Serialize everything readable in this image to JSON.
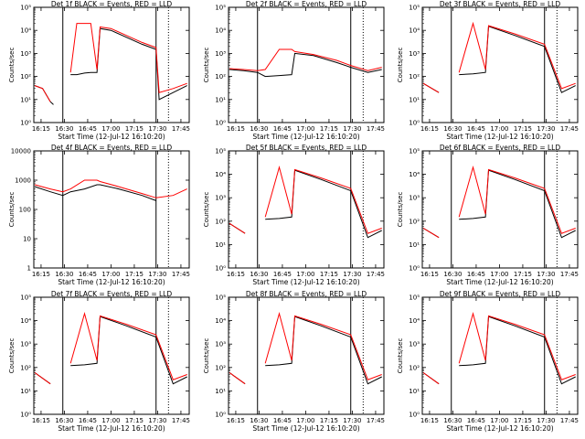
{
  "figure": {
    "layout": "3x3 grid",
    "colors": {
      "events": "#000000",
      "lld": "#ff0000",
      "axes": "#000000",
      "background": "#ffffff"
    },
    "shared_axes": {
      "x_scale": "time",
      "y_scale": "log",
      "x_ticks": [
        "16:15",
        "16:30",
        "16:45",
        "17:00",
        "17:15",
        "17:30",
        "17:45"
      ],
      "x_range": [
        "16:10:20",
        "17:50:20"
      ],
      "ylabel": "Counts/sec",
      "xlabel": "Start Time (12-Jul-12 16:10:20)"
    }
  },
  "chart_data": [
    {
      "type": "line",
      "title": "Det 1f BLACK = Events, RED = LLD",
      "ylabel": "Counts/sec",
      "xlabel": "Start Time (12-Jul-12 16:10:20)",
      "y_scale": "log",
      "ylim": [
        1,
        100000
      ],
      "y_tick_labels": [
        "10⁰",
        "10¹",
        "10²",
        "10³",
        "10⁴",
        "10⁵"
      ],
      "x_ticks": [
        "16:15",
        "16:30",
        "16:45",
        "17:00",
        "17:15",
        "17:30",
        "17:45"
      ],
      "vlines": {
        "solid": [
          "16:29",
          "17:29"
        ],
        "dotted": [
          "17:37"
        ]
      },
      "series": [
        {
          "name": "Events",
          "color": "#000000",
          "x": [
            "16:11",
            "16:16",
            "16:21",
            "16:23",
            "16:29",
            "16:34",
            "16:38",
            "16:43",
            "16:47",
            "16:51",
            "16:53",
            "17:00",
            "17:10",
            "17:20",
            "17:29",
            "17:31",
            "17:40",
            "17:49"
          ],
          "y": [
            40,
            30,
            8,
            6,
            null,
            120,
            120,
            140,
            150,
            150,
            12000,
            10000,
            5000,
            2500,
            1500,
            10,
            20,
            40
          ]
        },
        {
          "name": "LLD",
          "color": "#ff0000",
          "x": [
            "16:11",
            "16:16",
            "16:21",
            "16:23",
            "16:29",
            "16:34",
            "16:38",
            "16:43",
            "16:47",
            "16:51",
            "16:53",
            "17:00",
            "17:10",
            "17:20",
            "17:29",
            "17:31",
            "17:40",
            "17:49"
          ],
          "y": [
            40,
            30,
            8,
            null,
            null,
            150,
            20000,
            20000,
            20000,
            200,
            14000,
            12000,
            6000,
            3000,
            1800,
            20,
            30,
            50
          ]
        }
      ]
    },
    {
      "type": "line",
      "title": "Det 2f BLACK = Events, RED = LLD",
      "ylabel": "Counts/sec",
      "xlabel": "Start Time (12-Jul-12 16:10:20)",
      "y_scale": "log",
      "ylim": [
        1,
        100000
      ],
      "y_tick_labels": [
        "10⁰",
        "10¹",
        "10²",
        "10³",
        "10⁴",
        "10⁵"
      ],
      "x_ticks": [
        "16:15",
        "16:30",
        "16:45",
        "17:00",
        "17:15",
        "17:30",
        "17:45"
      ],
      "vlines": {
        "solid": [
          "16:29",
          "17:29"
        ],
        "dotted": [
          "17:37"
        ]
      },
      "series": [
        {
          "name": "Events",
          "color": "#000000",
          "x": [
            "16:11",
            "16:20",
            "16:29",
            "16:34",
            "16:43",
            "16:51",
            "16:53",
            "17:05",
            "17:20",
            "17:29",
            "17:40",
            "17:49"
          ],
          "y": [
            200,
            180,
            150,
            100,
            110,
            120,
            1000,
            800,
            400,
            250,
            150,
            200
          ]
        },
        {
          "name": "LLD",
          "color": "#ff0000",
          "x": [
            "16:11",
            "16:20",
            "16:29",
            "16:34",
            "16:43",
            "16:51",
            "16:53",
            "17:05",
            "17:20",
            "17:29",
            "17:40",
            "17:49"
          ],
          "y": [
            220,
            200,
            180,
            200,
            1500,
            1500,
            1200,
            900,
            500,
            300,
            180,
            250
          ]
        }
      ]
    },
    {
      "type": "line",
      "title": "Det 3f BLACK = Events, RED = LLD",
      "ylabel": "Counts/sec",
      "xlabel": "Start Time (12-Jul-12 16:10:20)",
      "y_scale": "log",
      "ylim": [
        1,
        100000
      ],
      "y_tick_labels": [
        "10⁰",
        "10¹",
        "10²",
        "10³",
        "10⁴",
        "10⁵"
      ],
      "x_ticks": [
        "16:15",
        "16:30",
        "16:45",
        "17:00",
        "17:15",
        "17:30",
        "17:45"
      ],
      "vlines": {
        "solid": [
          "16:29",
          "17:29"
        ],
        "dotted": [
          "17:37"
        ]
      },
      "series": [
        {
          "name": "Events",
          "color": "#000000",
          "x": [
            "16:11",
            "16:21",
            "16:29",
            "16:34",
            "16:43",
            "16:51",
            "16:53",
            "17:10",
            "17:29",
            "17:40",
            "17:49"
          ],
          "y": [
            50,
            20,
            null,
            120,
            130,
            150,
            15000,
            6000,
            2000,
            20,
            40
          ]
        },
        {
          "name": "LLD",
          "color": "#ff0000",
          "x": [
            "16:11",
            "16:21",
            "16:29",
            "16:34",
            "16:43",
            "16:51",
            "16:53",
            "17:10",
            "17:29",
            "17:40",
            "17:49"
          ],
          "y": [
            50,
            20,
            null,
            150,
            20000,
            200,
            16000,
            7000,
            2500,
            30,
            50
          ]
        }
      ]
    },
    {
      "type": "line",
      "title": "Det 4f BLACK = Events, RED = LLD",
      "ylabel": "Counts/sec",
      "xlabel": "Start Time (12-Jul-12 16:10:20)",
      "y_scale": "log",
      "ylim": [
        1,
        10000
      ],
      "y_tick_labels": [
        "1",
        "10",
        "100",
        "1000",
        "10000"
      ],
      "x_ticks": [
        "16:15",
        "16:30",
        "16:45",
        "17:00",
        "17:15",
        "17:30",
        "17:45"
      ],
      "vlines": {
        "solid": [
          "16:29",
          "17:29"
        ],
        "dotted": [
          "17:37"
        ]
      },
      "series": [
        {
          "name": "Events",
          "color": "#000000",
          "x": [
            "16:11",
            "16:21",
            "16:29",
            "16:34",
            "16:43",
            "16:51",
            "16:53",
            "17:05",
            "17:20",
            "17:29"
          ],
          "y": [
            600,
            400,
            300,
            400,
            500,
            700,
            700,
            500,
            300,
            200
          ]
        },
        {
          "name": "LLD",
          "color": "#ff0000",
          "x": [
            "16:11",
            "16:21",
            "16:29",
            "16:34",
            "16:43",
            "16:51",
            "16:53",
            "17:05",
            "17:20",
            "17:29",
            "17:40",
            "17:49"
          ],
          "y": [
            700,
            500,
            400,
            500,
            1000,
            1000,
            900,
            600,
            350,
            250,
            300,
            500
          ]
        }
      ]
    },
    {
      "type": "line",
      "title": "Det 5f BLACK = Events, RED = LLD",
      "ylabel": "Counts/sec",
      "xlabel": "Start Time (12-Jul-12 16:10:20)",
      "y_scale": "log",
      "ylim": [
        1,
        100000
      ],
      "y_tick_labels": [
        "10⁰",
        "10¹",
        "10²",
        "10³",
        "10⁴",
        "10⁵"
      ],
      "x_ticks": [
        "16:15",
        "16:30",
        "16:45",
        "17:00",
        "17:15",
        "17:30",
        "17:45"
      ],
      "vlines": {
        "solid": [
          "16:29",
          "17:29"
        ],
        "dotted": [
          "17:37"
        ]
      },
      "series": [
        {
          "name": "Events",
          "color": "#000000",
          "x": [
            "16:11",
            "16:21",
            "16:29",
            "16:34",
            "16:43",
            "16:51",
            "16:53",
            "17:10",
            "17:29",
            "17:40",
            "17:49"
          ],
          "y": [
            80,
            30,
            null,
            120,
            130,
            150,
            15000,
            6000,
            2000,
            20,
            40
          ]
        },
        {
          "name": "LLD",
          "color": "#ff0000",
          "x": [
            "16:11",
            "16:21",
            "16:29",
            "16:34",
            "16:43",
            "16:51",
            "16:53",
            "17:10",
            "17:29",
            "17:40",
            "17:49"
          ],
          "y": [
            80,
            30,
            null,
            150,
            20000,
            200,
            16000,
            7000,
            2500,
            30,
            50
          ]
        }
      ]
    },
    {
      "type": "line",
      "title": "Det 6f BLACK = Events, RED = LLD",
      "ylabel": "Counts/sec",
      "xlabel": "Start Time (12-Jul-12 16:10:20)",
      "y_scale": "log",
      "ylim": [
        1,
        100000
      ],
      "y_tick_labels": [
        "10⁰",
        "10¹",
        "10²",
        "10³",
        "10⁴",
        "10⁵"
      ],
      "x_ticks": [
        "16:15",
        "16:30",
        "16:45",
        "17:00",
        "17:15",
        "17:30",
        "17:45"
      ],
      "vlines": {
        "solid": [
          "16:29",
          "17:29"
        ],
        "dotted": [
          "17:37"
        ]
      },
      "series": [
        {
          "name": "Events",
          "color": "#000000",
          "x": [
            "16:11",
            "16:21",
            "16:29",
            "16:34",
            "16:43",
            "16:51",
            "16:53",
            "17:10",
            "17:29",
            "17:40",
            "17:49"
          ],
          "y": [
            50,
            20,
            null,
            120,
            130,
            150,
            15000,
            6000,
            2000,
            20,
            40
          ]
        },
        {
          "name": "LLD",
          "color": "#ff0000",
          "x": [
            "16:11",
            "16:21",
            "16:29",
            "16:34",
            "16:43",
            "16:51",
            "16:53",
            "17:10",
            "17:29",
            "17:40",
            "17:49"
          ],
          "y": [
            50,
            20,
            null,
            150,
            20000,
            200,
            16000,
            7000,
            2500,
            30,
            50
          ]
        }
      ]
    },
    {
      "type": "line",
      "title": "Det 7f BLACK = Events, RED = LLD",
      "ylabel": "Counts/sec",
      "xlabel": "Start Time (12-Jul-12 16:10:20)",
      "y_scale": "log",
      "ylim": [
        1,
        100000
      ],
      "y_tick_labels": [
        "10⁰",
        "10¹",
        "10²",
        "10³",
        "10⁴",
        "10⁵"
      ],
      "x_ticks": [
        "16:15",
        "16:30",
        "16:45",
        "17:00",
        "17:15",
        "17:30",
        "17:45"
      ],
      "vlines": {
        "solid": [
          "16:29",
          "17:29"
        ],
        "dotted": [
          "17:37"
        ]
      },
      "series": [
        {
          "name": "Events",
          "color": "#000000",
          "x": [
            "16:11",
            "16:21",
            "16:29",
            "16:34",
            "16:43",
            "16:51",
            "16:53",
            "17:10",
            "17:29",
            "17:40",
            "17:49"
          ],
          "y": [
            60,
            20,
            null,
            120,
            130,
            150,
            15000,
            6000,
            2000,
            20,
            40
          ]
        },
        {
          "name": "LLD",
          "color": "#ff0000",
          "x": [
            "16:11",
            "16:21",
            "16:29",
            "16:34",
            "16:43",
            "16:51",
            "16:53",
            "17:10",
            "17:29",
            "17:40",
            "17:49"
          ],
          "y": [
            60,
            20,
            null,
            150,
            20000,
            200,
            16000,
            7000,
            2500,
            30,
            50
          ]
        }
      ]
    },
    {
      "type": "line",
      "title": "Det 8f BLACK = Events, RED = LLD",
      "ylabel": "Counts/sec",
      "xlabel": "Start Time (12-Jul-12 16:10:20)",
      "y_scale": "log",
      "ylim": [
        1,
        100000
      ],
      "y_tick_labels": [
        "10⁰",
        "10¹",
        "10²",
        "10³",
        "10⁴",
        "10⁵"
      ],
      "x_ticks": [
        "16:15",
        "16:30",
        "16:45",
        "17:00",
        "17:15",
        "17:30",
        "17:45"
      ],
      "vlines": {
        "solid": [
          "16:29",
          "17:29"
        ],
        "dotted": [
          "17:37"
        ]
      },
      "series": [
        {
          "name": "Events",
          "color": "#000000",
          "x": [
            "16:11",
            "16:21",
            "16:29",
            "16:34",
            "16:43",
            "16:51",
            "16:53",
            "17:10",
            "17:29",
            "17:40",
            "17:49"
          ],
          "y": [
            60,
            20,
            null,
            120,
            130,
            150,
            15000,
            6000,
            2000,
            20,
            40
          ]
        },
        {
          "name": "LLD",
          "color": "#ff0000",
          "x": [
            "16:11",
            "16:21",
            "16:29",
            "16:34",
            "16:43",
            "16:51",
            "16:53",
            "17:10",
            "17:29",
            "17:40",
            "17:49"
          ],
          "y": [
            60,
            20,
            null,
            150,
            20000,
            200,
            16000,
            7000,
            2500,
            30,
            50
          ]
        }
      ]
    },
    {
      "type": "line",
      "title": "Det 9f BLACK = Events, RED = LLD",
      "ylabel": "Counts/sec",
      "xlabel": "Start Time (12-Jul-12 16:10:20)",
      "y_scale": "log",
      "ylim": [
        1,
        100000
      ],
      "y_tick_labels": [
        "10⁰",
        "10¹",
        "10²",
        "10³",
        "10⁴",
        "10⁵"
      ],
      "x_ticks": [
        "16:15",
        "16:30",
        "16:45",
        "17:00",
        "17:15",
        "17:30",
        "17:45"
      ],
      "vlines": {
        "solid": [
          "16:29",
          "17:29"
        ],
        "dotted": [
          "17:37"
        ]
      },
      "series": [
        {
          "name": "Events",
          "color": "#000000",
          "x": [
            "16:11",
            "16:21",
            "16:29",
            "16:34",
            "16:43",
            "16:51",
            "16:53",
            "17:10",
            "17:29",
            "17:40",
            "17:49"
          ],
          "y": [
            60,
            20,
            null,
            120,
            130,
            150,
            15000,
            6000,
            2000,
            20,
            40
          ]
        },
        {
          "name": "LLD",
          "color": "#ff0000",
          "x": [
            "16:11",
            "16:21",
            "16:29",
            "16:34",
            "16:43",
            "16:51",
            "16:53",
            "17:10",
            "17:29",
            "17:40",
            "17:49"
          ],
          "y": [
            60,
            20,
            null,
            150,
            20000,
            200,
            16000,
            7000,
            2500,
            30,
            50
          ]
        }
      ]
    }
  ]
}
